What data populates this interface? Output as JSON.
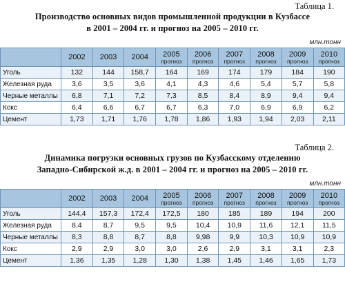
{
  "table1": {
    "number": "Таблица 1.",
    "title_line1": "Производство основных видов промышленной продукции в Кузбассе",
    "title_line2": "в 2001 – 2004 гг. и прогноз на 2005 – 2010 гг.",
    "unit": "млн.тонн",
    "columns": [
      {
        "year": "2002",
        "note": ""
      },
      {
        "year": "2003",
        "note": ""
      },
      {
        "year": "2004",
        "note": ""
      },
      {
        "year": "2005",
        "note": "прогноз"
      },
      {
        "year": "2006",
        "note": "прогноз"
      },
      {
        "year": "2007",
        "note": "прогноз"
      },
      {
        "year": "2008",
        "note": "прогноз"
      },
      {
        "year": "2009",
        "note": "прогноз"
      },
      {
        "year": "2010",
        "note": "прогноз"
      }
    ],
    "rows": [
      {
        "label": "Уголь",
        "values": [
          "132",
          "144",
          "158,7",
          "164",
          "169",
          "174",
          "179",
          "184",
          "190"
        ]
      },
      {
        "label": "Железная руда",
        "values": [
          "3,6",
          "3,5",
          "3,6",
          "4,1",
          "4,3",
          "4,6",
          "5,4",
          "5,7",
          "5,8"
        ]
      },
      {
        "label": "Черные металлы",
        "values": [
          "6,8",
          "7,1",
          "7,2",
          "7,3",
          "8,5",
          "8,4",
          "8,9",
          "9,4",
          "9,4"
        ]
      },
      {
        "label": "Кокс",
        "values": [
          "6,4",
          "6,6",
          "6,7",
          "6,7",
          "6,3",
          "7,0",
          "6,9",
          "6,9",
          "6,2"
        ]
      },
      {
        "label": "Цемент",
        "values": [
          "1,73",
          "1,71",
          "1,76",
          "1,78",
          "1,86",
          "1,93",
          "1,94",
          "2,03",
          "2,11"
        ]
      }
    ]
  },
  "table2": {
    "number": "Таблица 2.",
    "title_line1": "Динамика погрузки основных грузов по Кузбасскому отделению",
    "title_line2": "Западно-Сибирской ж.д. в 2001 – 2004 гг. и прогноз на 2005 – 2010 гг.",
    "unit": "млн.тонн",
    "columns": [
      {
        "year": "2002",
        "note": ""
      },
      {
        "year": "2003",
        "note": ""
      },
      {
        "year": "2004",
        "note": ""
      },
      {
        "year": "2005",
        "note": "прогноз"
      },
      {
        "year": "2006",
        "note": "прогноз"
      },
      {
        "year": "2007",
        "note": "прогноз"
      },
      {
        "year": "2008",
        "note": "прогноз"
      },
      {
        "year": "2009",
        "note": "прогноз"
      },
      {
        "year": "2010",
        "note": "прогноз"
      }
    ],
    "rows": [
      {
        "label": "Уголь",
        "values": [
          "144,4",
          "157,3",
          "172,4",
          "172,5",
          "180",
          "185",
          "189",
          "194",
          "200"
        ]
      },
      {
        "label": "Железная руда",
        "values": [
          "8,4",
          "8,7",
          "9,5",
          "9,5",
          "10,4",
          "10,9",
          "11,6",
          "12,1",
          "11,5"
        ]
      },
      {
        "label": "Черные металлы",
        "values": [
          "8,3",
          "8,8",
          "8,7",
          "8,8",
          "9,98",
          "9,9",
          "10,3",
          "10,9",
          "10,9"
        ]
      },
      {
        "label": "Кокс",
        "values": [
          "2,9",
          "2,9",
          "3,0",
          "3,0",
          "2,6",
          "2,9",
          "3,1",
          "3,1",
          "2,3"
        ]
      },
      {
        "label": "Цемент",
        "values": [
          "1,36",
          "1,35",
          "1,28",
          "1,30",
          "1,38",
          "1,45",
          "1,46",
          "1,65",
          "1,73"
        ]
      }
    ]
  }
}
